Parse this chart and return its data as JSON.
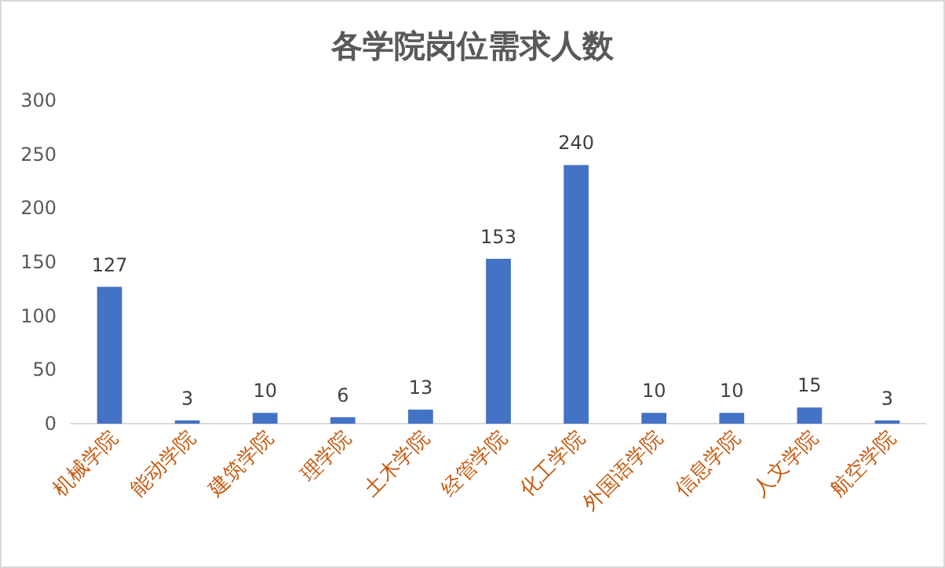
{
  "chart_data": {
    "type": "bar",
    "title": "各学院岗位需求人数",
    "categories": [
      "机械学院",
      "能动学院",
      "建筑学院",
      "理学院",
      "土木学院",
      "经管学院",
      "化工学院",
      "外国语学院",
      "信息学院",
      "人文学院",
      "航空学院"
    ],
    "values": [
      127,
      3,
      10,
      6,
      13,
      153,
      240,
      10,
      10,
      15,
      3
    ],
    "color": "#4472c4",
    "ylim": [
      0,
      300
    ],
    "yticks": [
      0,
      50,
      100,
      150,
      200,
      250,
      300
    ],
    "data_labels": true
  }
}
